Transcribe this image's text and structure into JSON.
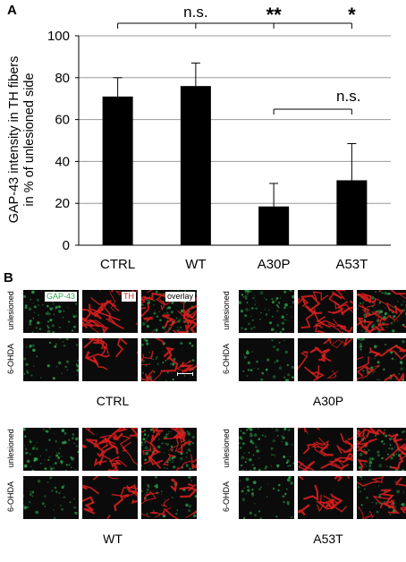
{
  "chart_data": {
    "type": "bar",
    "panel_letter": "A",
    "categories": [
      "CTRL",
      "WT",
      "A30P",
      "A53T"
    ],
    "values": [
      71,
      76,
      18.5,
      31
    ],
    "errors": [
      9,
      11,
      11,
      17.5
    ],
    "ylabel_line1": "GAP-43 intensity in TH fibers",
    "ylabel_line2": "in % of unlesioned side",
    "ylim": [
      0,
      100
    ],
    "yticks": [
      "0",
      "20",
      "40",
      "60",
      "80",
      "100"
    ],
    "grid": true,
    "bar_color": "#000000",
    "significance": [
      {
        "from": 0,
        "to": 1,
        "label": "n.s."
      },
      {
        "from": 0,
        "to": 2,
        "label": "**"
      },
      {
        "from": 0,
        "to": 3,
        "label": "*"
      },
      {
        "from": 2,
        "to": 3,
        "label": "n.s."
      }
    ]
  },
  "panel_b": {
    "letter": "B",
    "channel_labels": {
      "gap43": "GAP-43",
      "th": "TH",
      "overlay": "overlay"
    },
    "channel_colors": {
      "gap43": "#2fa84f",
      "th": "#e0201e",
      "overlay": "#000000"
    },
    "row_labels": [
      "unlesioned",
      "6-OHDA"
    ],
    "groups": [
      "CTRL",
      "A30P",
      "WT",
      "A53T"
    ]
  }
}
